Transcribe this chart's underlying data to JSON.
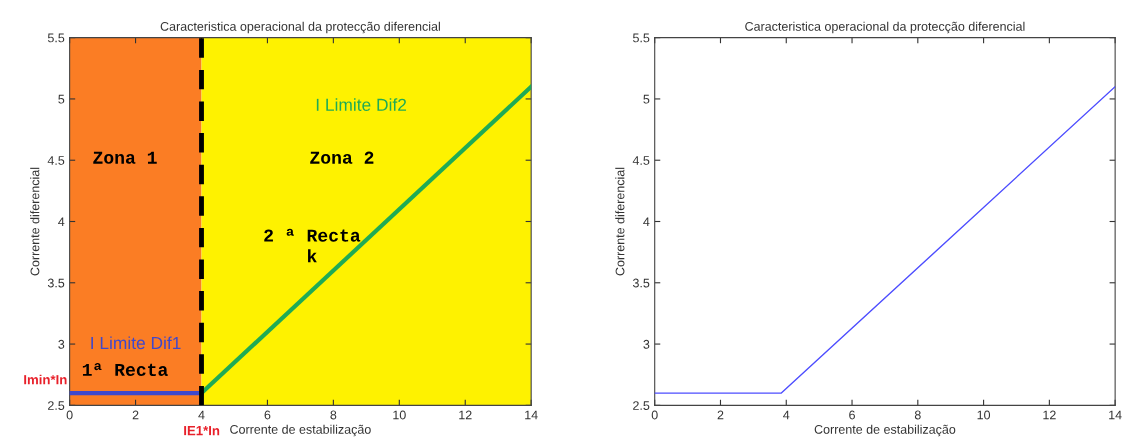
{
  "chart_data": [
    {
      "type": "line",
      "title": "Caracteristica operacional da protecção diferencial",
      "xlabel": "Corrente de estabilização",
      "ylabel": "Corrente diferencial",
      "xlim": [
        0,
        14
      ],
      "xticks": [
        0,
        2,
        4,
        6,
        8,
        10,
        12,
        14
      ],
      "ylim": [
        2.5,
        5.5
      ],
      "yticks": [
        2.5,
        3,
        3.5,
        4,
        4.5,
        5,
        5.5
      ],
      "grid": false,
      "line_style": "solid",
      "bands": [
        {
          "axis": "x",
          "from": 0,
          "to": 4,
          "color": "#fb7d24"
        },
        {
          "axis": "x",
          "from": 4,
          "to": 14,
          "color": "#fef200"
        }
      ],
      "ref_lines": [
        {
          "axis": "x",
          "value": 4,
          "color": "#000000",
          "line_style": "dashed"
        }
      ],
      "series": [
        {
          "name": "I Limite Dif1",
          "color": "#3f48cc",
          "x": [
            0,
            4
          ],
          "values": [
            2.6,
            2.6
          ]
        },
        {
          "name": "I Limite Dif2",
          "color": "#1fab55",
          "x": [
            4,
            14
          ],
          "values": [
            2.6,
            5.1
          ]
        }
      ],
      "annotations": [
        "Zona 1",
        "Zona 2",
        "2 ª Recta\nk",
        "1ª Recta",
        "Imin*In",
        "IE1*In"
      ]
    },
    {
      "type": "line",
      "title": "Caracteristica operacional da protecção diferencial",
      "xlabel": "Corrente de estabilização",
      "ylabel": "Corrente diferencial",
      "xlim": [
        0,
        14
      ],
      "xticks": [
        0,
        2,
        4,
        6,
        8,
        10,
        12,
        14
      ],
      "ylim": [
        2.5,
        5.5
      ],
      "yticks": [
        2.5,
        3,
        3.5,
        4,
        4.5,
        5,
        5.5
      ],
      "grid": false,
      "line_style": "solid",
      "series": [
        {
          "color": "#4d4dff",
          "x": [
            0,
            3.85,
            14
          ],
          "values": [
            2.6,
            2.6,
            5.1
          ]
        }
      ]
    }
  ]
}
